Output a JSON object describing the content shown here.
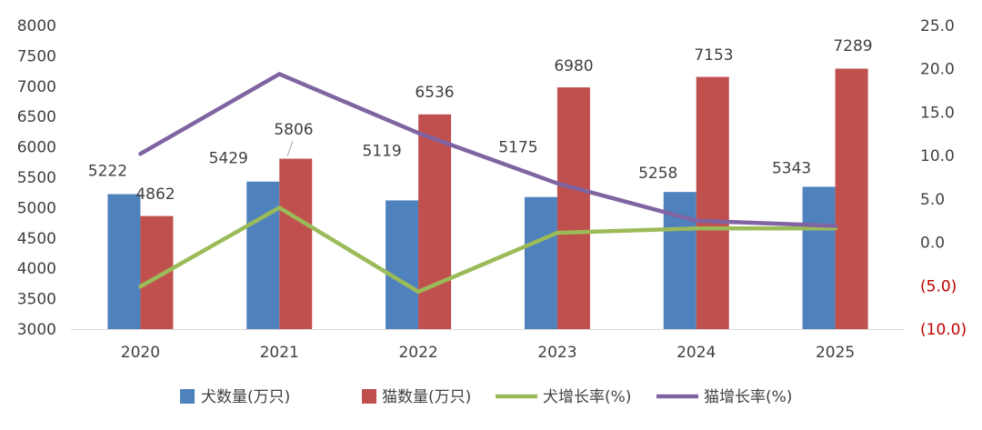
{
  "chart_data": {
    "type": "bar",
    "categories": [
      "2020",
      "2021",
      "2022",
      "2023",
      "2024",
      "2025"
    ],
    "series": [
      {
        "name": "犬数量(万只)",
        "kind": "bar",
        "axis": "left",
        "color": "#4f81bd",
        "values": [
          5222,
          5429,
          5119,
          5175,
          5258,
          5343
        ]
      },
      {
        "name": "猫数量(万只)",
        "kind": "bar",
        "axis": "left",
        "color": "#c0504d",
        "values": [
          4862,
          5806,
          6536,
          6980,
          7153,
          7289
        ]
      },
      {
        "name": "犬增长率(%)",
        "kind": "line",
        "axis": "right",
        "color": "#9bbb59",
        "values": [
          -5.1,
          4.0,
          -5.7,
          1.1,
          1.6,
          1.6
        ]
      },
      {
        "name": "猫增长率(%)",
        "kind": "line",
        "axis": "right",
        "color": "#8064a2",
        "values": [
          10.2,
          19.4,
          12.6,
          6.8,
          2.5,
          1.9
        ]
      }
    ],
    "left_axis": {
      "min": 3000,
      "max": 8000,
      "step": 500,
      "tick_labels": [
        "3000",
        "3500",
        "4000",
        "4500",
        "5000",
        "5500",
        "6000",
        "6500",
        "7000",
        "7500",
        "8000"
      ]
    },
    "right_axis": {
      "min": -10,
      "max": 25,
      "step": 5,
      "tick_labels": [
        "(10.0)",
        "(5.0)",
        "0.0",
        "5.0",
        "10.0",
        "15.0",
        "20.0",
        "25.0"
      ],
      "negative_color": "#c00000"
    },
    "data_labels": {
      "dogs": [
        "5222",
        "5429",
        "5119",
        "5175",
        "5258",
        "5343"
      ],
      "cats": [
        "4862",
        "5806",
        "6536",
        "6980",
        "7153",
        "7289"
      ]
    },
    "legend_position": "bottom",
    "grid": false
  }
}
